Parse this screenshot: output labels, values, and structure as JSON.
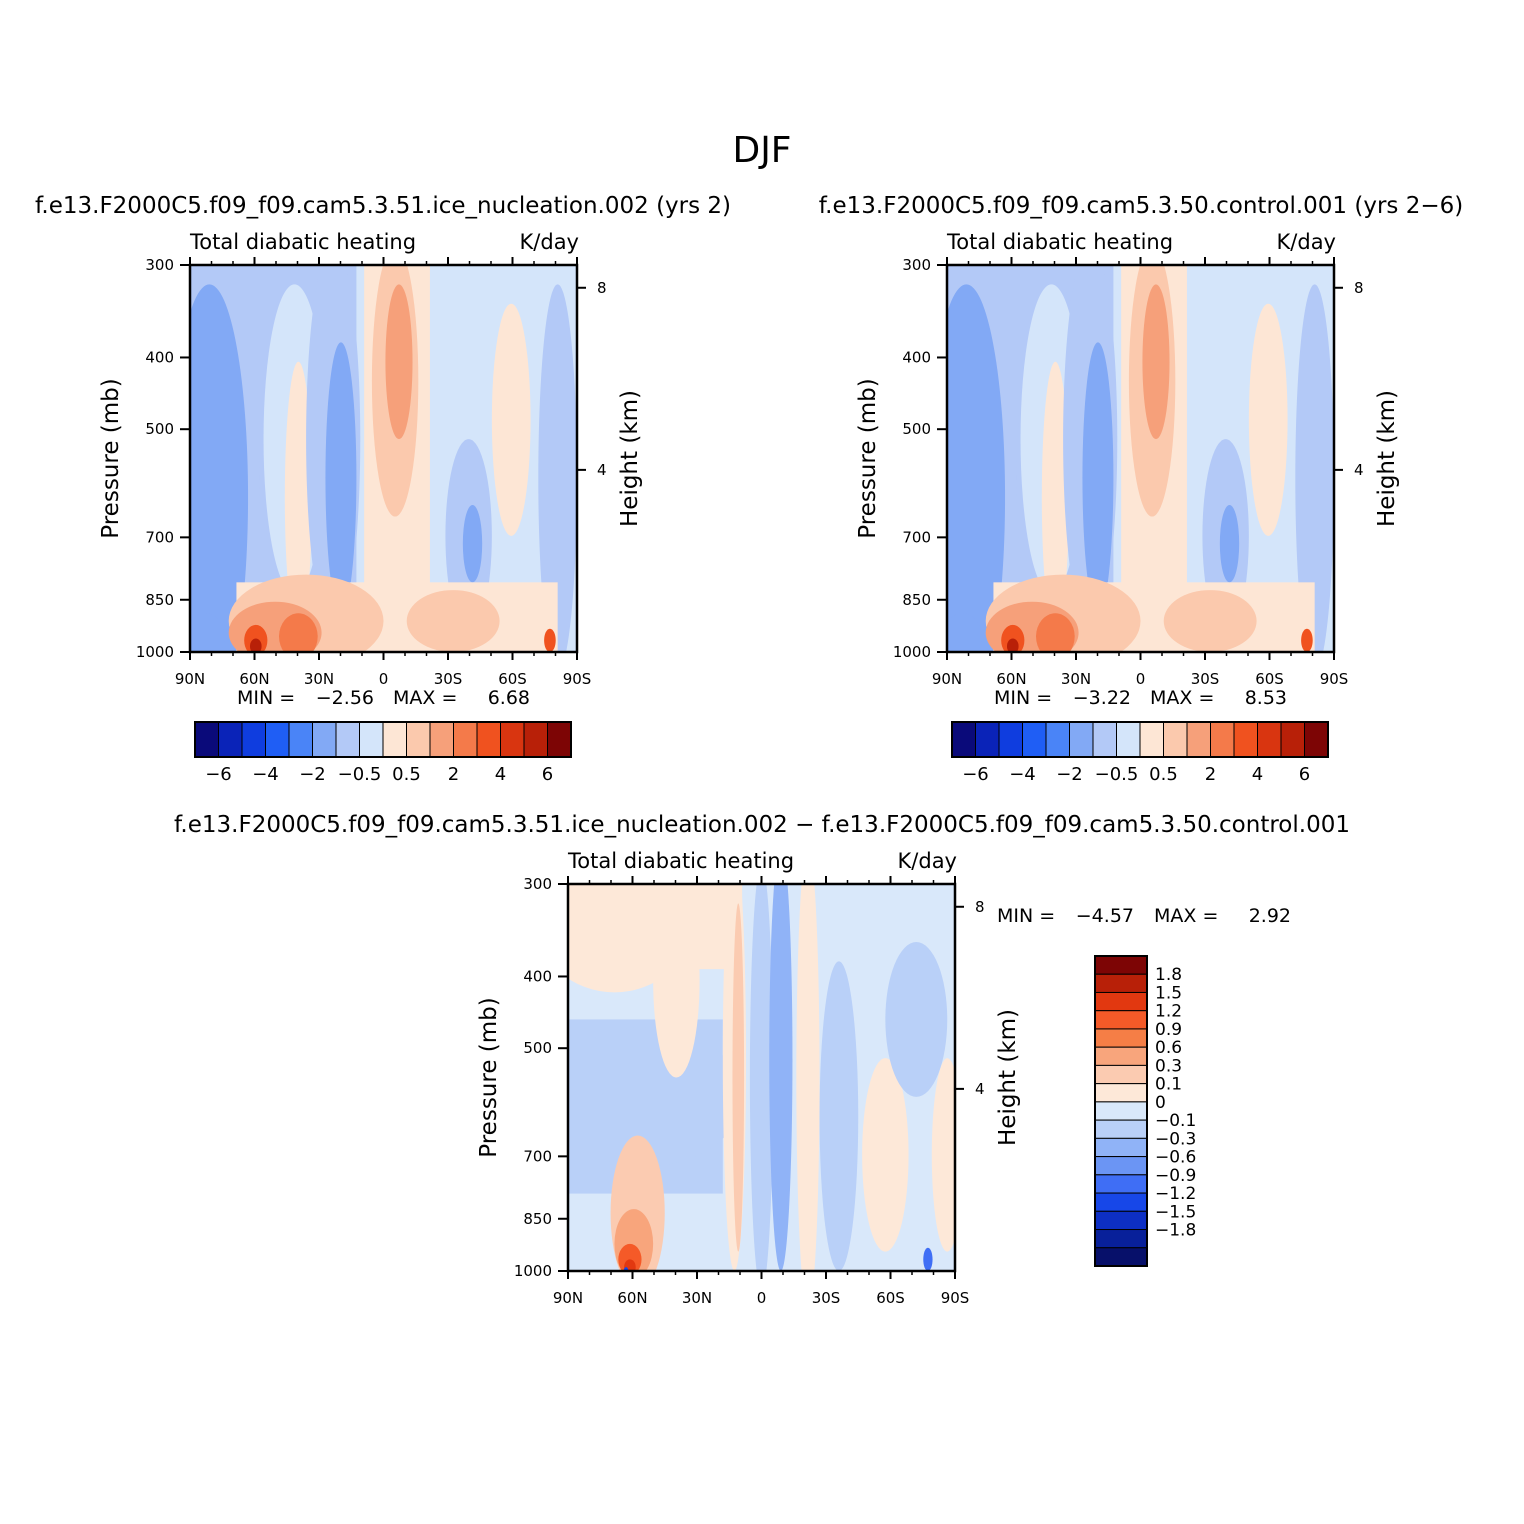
{
  "figure": {
    "title": "DJF"
  },
  "colors": {
    "main_scale": [
      "#0a0a7a",
      "#0a23b8",
      "#0f3ddf",
      "#1f5ef5",
      "#4a84f7",
      "#82a9f5",
      "#b3c9f7",
      "#d4e5fa",
      "#fde6d5",
      "#fbc9ad",
      "#f6a07a",
      "#f47a4a",
      "#f0521f",
      "#d93510",
      "#b82008",
      "#7d0505"
    ],
    "diff_scale": [
      "#7d0505",
      "#b82008",
      "#e23810",
      "#f55a28",
      "#f57e46",
      "#f8a57c",
      "#fbcbb1",
      "#fde8d8",
      "#d9e8fa",
      "#b9d0f8",
      "#90b3f7",
      "#6b95f4",
      "#3f6ef5",
      "#1747e8",
      "#0d2fc4",
      "#08209a",
      "#07106a"
    ]
  },
  "panels": [
    {
      "id": "p1",
      "case_title": "f.e13.F2000C5.f09_f09.cam5.3.51.ice_nucleation.002  (yrs  2)",
      "variable": "Total  diabatic  heating",
      "units": "K/day",
      "ylabel": "Pressure  (mb)",
      "ylabel_right": "Height  (km)",
      "min_label": "MIN  =",
      "min_value": "−2.56",
      "max_label": "MAX  =",
      "max_value": "6.68",
      "colorbar_labels": [
        "−6",
        "−4",
        "−2",
        "−0.5",
        "0.5",
        "2",
        "4",
        "6"
      ]
    },
    {
      "id": "p2",
      "case_title": "f.e13.F2000C5.f09_f09.cam5.3.50.control.001  (yrs  2−6)",
      "variable": "Total  diabatic  heating",
      "units": "K/day",
      "ylabel": "Pressure  (mb)",
      "ylabel_right": "Height  (km)",
      "min_label": "MIN  =",
      "min_value": "−3.22",
      "max_label": "MAX  =",
      "max_value": "8.53",
      "colorbar_labels": [
        "−6",
        "−4",
        "−2",
        "−0.5",
        "0.5",
        "2",
        "4",
        "6"
      ]
    },
    {
      "id": "p3",
      "case_title": "f.e13.F2000C5.f09_f09.cam5.3.51.ice_nucleation.002  −  f.e13.F2000C5.f09_f09.cam5.3.50.control.001",
      "variable": "Total  diabatic  heating",
      "units": "K/day",
      "ylabel": "Pressure  (mb)",
      "ylabel_right": "Height  (km)",
      "min_label": "MIN  =",
      "min_value": "−4.57",
      "max_label": "MAX  =",
      "max_value": "2.92",
      "colorbar_labels": [
        "1.8",
        "1.5",
        "1.2",
        "0.9",
        "0.6",
        "0.3",
        "0.1",
        "0",
        "−0.1",
        "−0.3",
        "−0.6",
        "−0.9",
        "−1.2",
        "−1.5",
        "−1.8"
      ]
    }
  ],
  "chart_data": [
    {
      "type": "heatmap",
      "title": "f.e13.F2000C5.f09_f09.cam5.3.51.ice_nucleation.002  (yrs  2)",
      "subtitle": "Total  diabatic  heating",
      "units": "K/day",
      "xlabel": "",
      "ylabel": "Pressure  (mb)",
      "ylabel_right": "Height  (km)",
      "x_tick_labels": [
        "90N",
        "60N",
        "30N",
        "0",
        "30S",
        "60S",
        "90S"
      ],
      "x_ticks": [
        90,
        60,
        30,
        0,
        -30,
        -60,
        -90
      ],
      "xlim": [
        90,
        -90
      ],
      "y_tick_labels": [
        "300",
        "400",
        "500",
        "700",
        "850",
        "1000"
      ],
      "y_ticks": [
        300,
        400,
        500,
        700,
        850,
        1000
      ],
      "ylim": [
        1000,
        300
      ],
      "y_right_ticks": [
        8,
        4
      ],
      "contour_levels": [
        -6,
        -5,
        -4,
        -3,
        -2,
        -1,
        -0.5,
        0,
        0.5,
        1,
        2,
        3,
        4,
        5,
        6
      ],
      "min": -2.56,
      "max": 6.68
    },
    {
      "type": "heatmap",
      "title": "f.e13.F2000C5.f09_f09.cam5.3.50.control.001  (yrs  2−6)",
      "subtitle": "Total  diabatic  heating",
      "units": "K/day",
      "xlabel": "",
      "ylabel": "Pressure  (mb)",
      "ylabel_right": "Height  (km)",
      "x_tick_labels": [
        "90N",
        "60N",
        "30N",
        "0",
        "30S",
        "60S",
        "90S"
      ],
      "x_ticks": [
        90,
        60,
        30,
        0,
        -30,
        -60,
        -90
      ],
      "xlim": [
        90,
        -90
      ],
      "y_tick_labels": [
        "300",
        "400",
        "500",
        "700",
        "850",
        "1000"
      ],
      "y_ticks": [
        300,
        400,
        500,
        700,
        850,
        1000
      ],
      "ylim": [
        1000,
        300
      ],
      "y_right_ticks": [
        8,
        4
      ],
      "contour_levels": [
        -6,
        -5,
        -4,
        -3,
        -2,
        -1,
        -0.5,
        0,
        0.5,
        1,
        2,
        3,
        4,
        5,
        6
      ],
      "min": -3.22,
      "max": 8.53
    },
    {
      "type": "heatmap",
      "title": "f.e13.F2000C5.f09_f09.cam5.3.51.ice_nucleation.002  −  f.e13.F2000C5.f09_f09.cam5.3.50.control.001",
      "subtitle": "Total  diabatic  heating",
      "units": "K/day",
      "xlabel": "",
      "ylabel": "Pressure  (mb)",
      "ylabel_right": "Height  (km)",
      "x_tick_labels": [
        "90N",
        "60N",
        "30N",
        "0",
        "30S",
        "60S",
        "90S"
      ],
      "x_ticks": [
        90,
        60,
        30,
        0,
        -30,
        -60,
        -90
      ],
      "xlim": [
        90,
        -90
      ],
      "y_tick_labels": [
        "300",
        "400",
        "500",
        "700",
        "850",
        "1000"
      ],
      "y_ticks": [
        300,
        400,
        500,
        700,
        850,
        1000
      ],
      "ylim": [
        1000,
        300
      ],
      "y_right_ticks": [
        8,
        4
      ],
      "contour_levels": [
        1.8,
        1.5,
        1.2,
        0.9,
        0.6,
        0.3,
        0.1,
        0,
        -0.1,
        -0.3,
        -0.6,
        -0.9,
        -1.2,
        -1.5,
        -1.8
      ],
      "min": -4.57,
      "max": 2.92
    }
  ]
}
